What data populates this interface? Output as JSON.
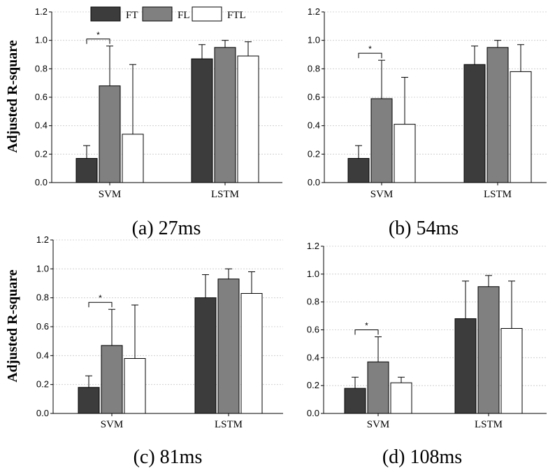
{
  "figure": {
    "y_axis_label": "Adjusted R-square",
    "legend": [
      {
        "label": "FT",
        "color": "#3c3c3c"
      },
      {
        "label": "FL",
        "color": "#808080"
      },
      {
        "label": "FTL",
        "color": "#ffffff"
      }
    ],
    "significance_marker": "*"
  },
  "chart_data": [
    {
      "type": "bar",
      "caption": "(a) 27ms",
      "categories": [
        "SVM",
        "LSTM"
      ],
      "ylim": [
        0,
        1.2
      ],
      "yticks": [
        "0.0",
        "0.2",
        "0.4",
        "0.6",
        "0.8",
        "1.0",
        "1.2"
      ],
      "grid": true,
      "series": [
        {
          "name": "FT",
          "values": [
            0.17,
            0.87
          ],
          "errors": [
            0.09,
            0.1
          ]
        },
        {
          "name": "FL",
          "values": [
            0.68,
            0.95
          ],
          "errors": [
            0.28,
            0.05
          ]
        },
        {
          "name": "FTL",
          "values": [
            0.34,
            0.89
          ],
          "errors": [
            0.49,
            0.1
          ]
        }
      ],
      "significance": {
        "category": "SVM",
        "between": [
          "FT",
          "FL"
        ],
        "label": "*"
      }
    },
    {
      "type": "bar",
      "caption": "(b) 54ms",
      "categories": [
        "SVM",
        "LSTM"
      ],
      "ylim": [
        0,
        1.2
      ],
      "yticks": [
        "0.0",
        "0.2",
        "0.4",
        "0.6",
        "0.8",
        "1.0",
        "1.2"
      ],
      "grid": true,
      "series": [
        {
          "name": "FT",
          "values": [
            0.17,
            0.83
          ],
          "errors": [
            0.09,
            0.13
          ]
        },
        {
          "name": "FL",
          "values": [
            0.59,
            0.95
          ],
          "errors": [
            0.27,
            0.05
          ]
        },
        {
          "name": "FTL",
          "values": [
            0.41,
            0.78
          ],
          "errors": [
            0.33,
            0.19
          ]
        }
      ],
      "significance": {
        "category": "SVM",
        "between": [
          "FT",
          "FL"
        ],
        "label": "*"
      }
    },
    {
      "type": "bar",
      "caption": "(c) 81ms",
      "categories": [
        "SVM",
        "LSTM"
      ],
      "ylim": [
        0,
        1.2
      ],
      "yticks": [
        "0.0",
        "0.2",
        "0.4",
        "0.6",
        "0.8",
        "1.0",
        "1.2"
      ],
      "grid": true,
      "series": [
        {
          "name": "FT",
          "values": [
            0.18,
            0.8
          ],
          "errors": [
            0.08,
            0.16
          ]
        },
        {
          "name": "FL",
          "values": [
            0.47,
            0.93
          ],
          "errors": [
            0.25,
            0.07
          ]
        },
        {
          "name": "FTL",
          "values": [
            0.38,
            0.83
          ],
          "errors": [
            0.37,
            0.15
          ]
        }
      ],
      "significance": {
        "category": "SVM",
        "between": [
          "FT",
          "FL"
        ],
        "label": "*"
      }
    },
    {
      "type": "bar",
      "caption": "(d) 108ms",
      "categories": [
        "SVM",
        "LSTM"
      ],
      "ylim": [
        0,
        1.2
      ],
      "yticks": [
        "0.0",
        "0.2",
        "0.4",
        "0.6",
        "0.8",
        "1.0",
        "1.2"
      ],
      "grid": true,
      "series": [
        {
          "name": "FT",
          "values": [
            0.18,
            0.68
          ],
          "errors": [
            0.08,
            0.27
          ]
        },
        {
          "name": "FL",
          "values": [
            0.37,
            0.91
          ],
          "errors": [
            0.18,
            0.08
          ]
        },
        {
          "name": "FTL",
          "values": [
            0.22,
            0.61
          ],
          "errors": [
            0.04,
            0.34
          ]
        }
      ],
      "significance": {
        "category": "SVM",
        "between": [
          "FT",
          "FL"
        ],
        "label": "*"
      }
    }
  ]
}
